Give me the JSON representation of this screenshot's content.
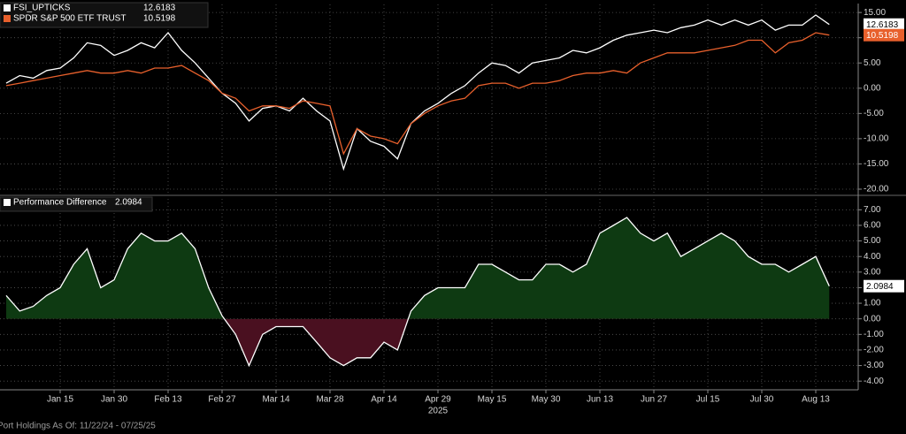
{
  "chart_data": [
    {
      "type": "line",
      "legend": "top-left",
      "grid": true,
      "series": [
        {
          "name": "FSI_UPTICKS",
          "color": "#ffffff",
          "values": [
            1.0,
            2.5,
            2.0,
            3.5,
            4.0,
            6.0,
            9.0,
            8.5,
            6.5,
            7.5,
            9.0,
            8.0,
            11.0,
            7.5,
            5.0,
            2.0,
            -1.0,
            -3.0,
            -6.5,
            -4.0,
            -3.5,
            -4.5,
            -2.0,
            -4.5,
            -6.5,
            -16.0,
            -8.0,
            -10.5,
            -11.5,
            -14.0,
            -7.0,
            -4.5,
            -3.0,
            -1.0,
            0.5,
            3.0,
            5.0,
            4.5,
            3.0,
            5.0,
            5.5,
            6.0,
            7.5,
            7.0,
            8.0,
            9.5,
            10.5,
            11.0,
            11.5,
            11.0,
            12.0,
            12.5,
            13.5,
            12.5,
            13.5,
            12.5,
            13.5,
            11.5,
            12.5,
            12.5,
            14.5,
            12.6183
          ]
        },
        {
          "name": "SPDR S&P 500 ETF TRUST",
          "color": "#e8602c",
          "values": [
            0.5,
            1.0,
            1.5,
            2.0,
            2.5,
            3.0,
            3.5,
            3.0,
            3.0,
            3.5,
            3.0,
            4.0,
            4.0,
            4.5,
            3.0,
            1.5,
            -1.0,
            -2.0,
            -4.5,
            -3.5,
            -3.5,
            -4.0,
            -2.5,
            -3.0,
            -3.5,
            -13.0,
            -8.0,
            -9.5,
            -10.0,
            -11.0,
            -7.0,
            -5.0,
            -3.5,
            -2.5,
            -2.0,
            0.5,
            1.0,
            1.0,
            0.0,
            1.0,
            1.0,
            1.5,
            2.5,
            3.0,
            3.0,
            3.5,
            3.0,
            5.0,
            6.0,
            7.0,
            7.0,
            7.0,
            7.5,
            8.0,
            8.5,
            9.5,
            9.5,
            7.0,
            9.0,
            9.5,
            11.0,
            10.5198
          ]
        }
      ],
      "ylim": [
        -20.7,
        16.6
      ],
      "yticks": [
        {
          "value": -20,
          "label": "-20.00"
        },
        {
          "value": -15,
          "label": "-15.00"
        },
        {
          "value": -10,
          "label": "-10.00"
        },
        {
          "value": -5,
          "label": "-5.00"
        },
        {
          "value": 0,
          "label": "0.00"
        },
        {
          "value": 5,
          "label": "5.00"
        },
        {
          "value": 10,
          "label": "10.00"
        },
        {
          "value": 15,
          "label": "15.00"
        }
      ]
    },
    {
      "type": "area",
      "legend": "top-left",
      "grid": true,
      "series": [
        {
          "name": "Performance Difference",
          "color": "#ffffff",
          "positive_color": "#0e3a12",
          "negative_color": "#4a1020",
          "values": [
            1.5,
            0.5,
            0.8,
            1.5,
            2.0,
            3.5,
            4.5,
            2.0,
            2.5,
            4.5,
            5.5,
            5.0,
            5.0,
            5.5,
            4.5,
            2.0,
            0.2,
            -1.0,
            -3.0,
            -1.0,
            -0.5,
            -0.5,
            -0.5,
            -1.5,
            -2.5,
            -3.0,
            -2.5,
            -2.5,
            -1.5,
            -2.0,
            0.5,
            1.5,
            2.0,
            2.0,
            2.0,
            3.5,
            3.5,
            3.0,
            2.5,
            2.5,
            3.5,
            3.5,
            3.0,
            3.5,
            5.5,
            6.0,
            6.5,
            5.5,
            5.0,
            5.5,
            4.0,
            4.5,
            5.0,
            5.5,
            5.0,
            4.0,
            3.5,
            3.5,
            3.0,
            3.5,
            4.0,
            2.0984
          ]
        }
      ],
      "categories": [
        null,
        null,
        null,
        null,
        "Jan 15",
        null,
        null,
        null,
        "Jan 30",
        null,
        null,
        null,
        "Feb 13",
        null,
        null,
        null,
        "Feb 27",
        null,
        null,
        null,
        "Mar 14",
        null,
        null,
        null,
        "Mar 28",
        null,
        null,
        null,
        "Apr 14",
        null,
        null,
        null,
        "Apr 29",
        null,
        null,
        null,
        "May 15",
        null,
        null,
        null,
        "May 30",
        null,
        null,
        null,
        "Jun 13",
        null,
        null,
        null,
        "Jun 27",
        null,
        null,
        null,
        "Jul 15",
        null,
        null,
        null,
        "Jul 30",
        null,
        null,
        null,
        "Aug 13",
        null
      ],
      "year_label": "2025",
      "ylim": [
        -4.5,
        7.7
      ],
      "yticks": [
        {
          "value": -4,
          "label": "-4.00"
        },
        {
          "value": -3,
          "label": "-3.00"
        },
        {
          "value": -2,
          "label": "-2.00"
        },
        {
          "value": -1,
          "label": "-1.00"
        },
        {
          "value": 0,
          "label": "0.00"
        },
        {
          "value": 1,
          "label": "1.00"
        },
        {
          "value": 2,
          "label": "2.00"
        },
        {
          "value": 3,
          "label": "3.00"
        },
        {
          "value": 4,
          "label": "4.00"
        },
        {
          "value": 5,
          "label": "5.00"
        },
        {
          "value": 6,
          "label": "6.00"
        },
        {
          "value": 7,
          "label": "7.00"
        }
      ]
    }
  ],
  "footnote": "Port Holdings As Of: 11/22/24 - 07/25/25"
}
